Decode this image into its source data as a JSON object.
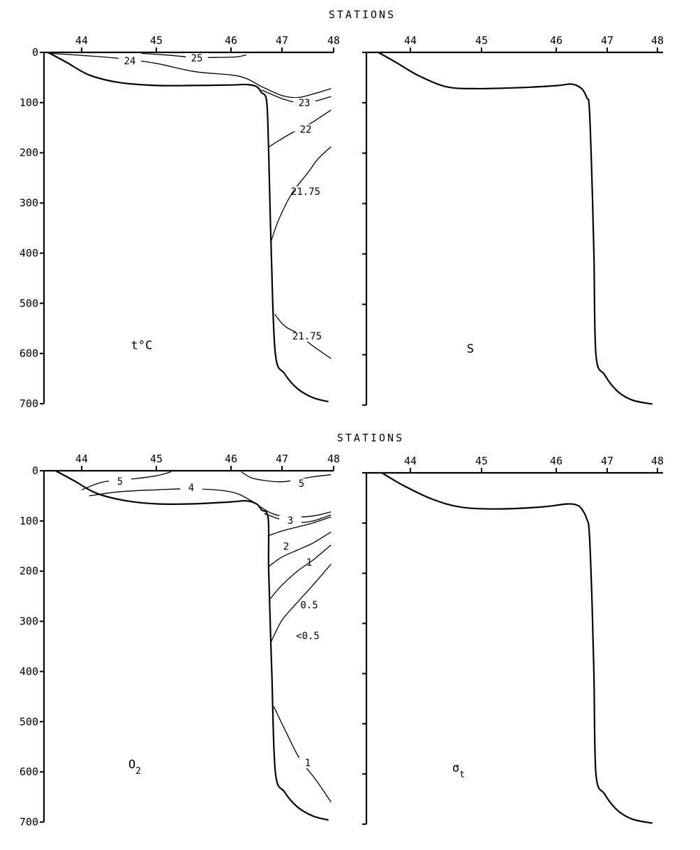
{
  "x_axis_title": "STATIONS",
  "chart_data": [
    {
      "type": "contour",
      "panel_label": "t°C",
      "x_axis_title": "STATIONS",
      "xticks": [
        "44",
        "45",
        "46",
        "47",
        "48"
      ],
      "yticks": [
        "0",
        "100",
        "200",
        "300",
        "400",
        "500",
        "600",
        "700"
      ],
      "xlim": [
        43.5,
        48
      ],
      "ylim": [
        0,
        700
      ],
      "y_axis": "depth (inverted, 0 at top)",
      "bottom_profile": [
        [
          43.55,
          0
        ],
        [
          43.8,
          20
        ],
        [
          44.1,
          45
        ],
        [
          44.5,
          60
        ],
        [
          45,
          66
        ],
        [
          45.5,
          66
        ],
        [
          46,
          65
        ],
        [
          46.3,
          64
        ],
        [
          46.5,
          68
        ],
        [
          46.6,
          80
        ],
        [
          46.7,
          98
        ],
        [
          46.74,
          200
        ],
        [
          46.79,
          400
        ],
        [
          46.87,
          600
        ],
        [
          47.05,
          640
        ],
        [
          47.3,
          670
        ],
        [
          47.6,
          688
        ],
        [
          47.9,
          696
        ]
      ],
      "contours": [
        {
          "label": "25",
          "points": [
            [
              44.8,
              2
            ],
            [
              45.2,
              6
            ],
            [
              45.5,
              10
            ],
            [
              45.8,
              10
            ],
            [
              46.1,
              9
            ],
            [
              46.3,
              5
            ]
          ]
        },
        {
          "label": "24",
          "points": [
            [
              43.55,
              2
            ],
            [
              44,
              6
            ],
            [
              44.5,
              12
            ],
            [
              45,
              22
            ],
            [
              45.5,
              38
            ],
            [
              46,
              45
            ],
            [
              46.3,
              52
            ],
            [
              46.6,
              68
            ],
            [
              47,
              86
            ],
            [
              47.3,
              90
            ],
            [
              47.6,
              83
            ],
            [
              47.95,
              72
            ]
          ]
        },
        {
          "label": "23",
          "points": [
            [
              46.6,
              75
            ],
            [
              47,
              92
            ],
            [
              47.3,
              100
            ],
            [
              47.6,
              98
            ],
            [
              47.95,
              88
            ]
          ]
        },
        {
          "label": "22",
          "points": [
            [
              46.75,
              188
            ],
            [
              46.95,
              175
            ],
            [
              47.2,
              160
            ],
            [
              47.5,
              145
            ],
            [
              47.95,
              115
            ]
          ]
        },
        {
          "label": "21.75",
          "points": [
            [
              46.79,
              375
            ],
            [
              46.95,
              330
            ],
            [
              47.2,
              280
            ],
            [
              47.5,
              240
            ],
            [
              47.7,
              212
            ],
            [
              47.95,
              188
            ]
          ]
        },
        {
          "label": "21.75",
          "points": [
            [
              46.86,
              522
            ],
            [
              47.05,
              545
            ],
            [
              47.3,
              560
            ],
            [
              47.6,
              585
            ],
            [
              47.95,
              610
            ]
          ]
        }
      ]
    },
    {
      "type": "contour",
      "panel_label": "S",
      "xticks": [
        "44",
        "45",
        "46",
        "47",
        "48"
      ],
      "yticks": [
        "",
        "",
        "",
        "",
        "",
        "",
        "",
        ""
      ],
      "xlim": [
        43.5,
        48
      ],
      "ylim": [
        0,
        700
      ],
      "bottom_profile": [
        [
          43.55,
          0
        ],
        [
          43.8,
          20
        ],
        [
          44.1,
          45
        ],
        [
          44.5,
          68
        ],
        [
          44.9,
          72
        ],
        [
          45.5,
          70
        ],
        [
          46,
          66
        ],
        [
          46.3,
          63
        ],
        [
          46.5,
          72
        ],
        [
          46.6,
          90
        ],
        [
          46.65,
          110
        ],
        [
          46.7,
          250
        ],
        [
          46.74,
          400
        ],
        [
          46.78,
          600
        ],
        [
          46.95,
          640
        ],
        [
          47.2,
          672
        ],
        [
          47.5,
          690
        ],
        [
          47.9,
          698
        ]
      ],
      "contours": []
    },
    {
      "type": "contour",
      "panel_label": "O2",
      "panel_label_main": "O",
      "panel_label_sub": "2",
      "x_axis_title": "STATIONS",
      "xticks": [
        "44",
        "45",
        "46",
        "47",
        "48"
      ],
      "yticks": [
        "0",
        "100",
        "200",
        "300",
        "400",
        "500",
        "600",
        "700"
      ],
      "xlim": [
        43.5,
        48
      ],
      "ylim": [
        0,
        700
      ],
      "bottom_profile": [
        [
          43.65,
          0
        ],
        [
          43.9,
          20
        ],
        [
          44.2,
          45
        ],
        [
          44.6,
          60
        ],
        [
          45,
          66
        ],
        [
          45.5,
          66
        ],
        [
          46,
          62
        ],
        [
          46.3,
          60
        ],
        [
          46.5,
          66
        ],
        [
          46.6,
          78
        ],
        [
          46.73,
          95
        ],
        [
          46.74,
          200
        ],
        [
          46.8,
          400
        ],
        [
          46.87,
          600
        ],
        [
          47.05,
          640
        ],
        [
          47.3,
          670
        ],
        [
          47.6,
          688
        ],
        [
          47.9,
          696
        ]
      ],
      "contours": [
        {
          "label": "5",
          "points": [
            [
              44,
              38
            ],
            [
              44.3,
              22
            ],
            [
              44.7,
              16
            ],
            [
              45,
              10
            ],
            [
              45.2,
              2
            ]
          ]
        },
        {
          "label": "4",
          "points": [
            [
              44.1,
              50
            ],
            [
              44.5,
              42
            ],
            [
              45,
              38
            ],
            [
              45.5,
              36
            ],
            [
              46,
              42
            ],
            [
              46.4,
              60
            ],
            [
              46.8,
              85
            ],
            [
              47.2,
              92
            ],
            [
              47.6,
              90
            ],
            [
              47.95,
              82
            ]
          ]
        },
        {
          "label": "5",
          "points": [
            [
              46.2,
              2
            ],
            [
              46.4,
              14
            ],
            [
              46.7,
              20
            ],
            [
              47,
              22
            ],
            [
              47.3,
              18
            ],
            [
              47.6,
              12
            ],
            [
              47.95,
              8
            ]
          ]
        },
        {
          "label": "3",
          "points": [
            [
              46.65,
              85
            ],
            [
              47,
              98
            ],
            [
              47.3,
              103
            ],
            [
              47.6,
              100
            ],
            [
              47.95,
              88
            ]
          ]
        },
        {
          "label": "2",
          "points": [
            [
              46.72,
              130
            ],
            [
              47,
              120
            ],
            [
              47.3,
              112
            ],
            [
              47.6,
              104
            ],
            [
              47.95,
              92
            ]
          ]
        },
        {
          "label": "1",
          "points": [
            [
              46.75,
              190
            ],
            [
              47,
              172
            ],
            [
              47.3,
              158
            ],
            [
              47.6,
              144
            ],
            [
              47.95,
              122
            ]
          ]
        },
        {
          "label": "0.5",
          "points": [
            [
              46.77,
              255
            ],
            [
              47,
              228
            ],
            [
              47.3,
              200
            ],
            [
              47.6,
              178
            ],
            [
              47.95,
              148
            ]
          ]
        },
        {
          "label": "<0.5",
          "points": [
            [
              46.79,
              340
            ],
            [
              47,
              298
            ],
            [
              47.3,
              262
            ],
            [
              47.6,
              228
            ],
            [
              47.95,
              186
            ]
          ]
        },
        {
          "label": "1",
          "points": [
            [
              46.84,
              470
            ],
            [
              47.1,
              525
            ],
            [
              47.35,
              575
            ],
            [
              47.65,
              615
            ],
            [
              47.95,
              660
            ]
          ]
        }
      ]
    },
    {
      "type": "contour",
      "panel_label": "σt",
      "panel_label_main": "σ",
      "panel_label_sub": "t",
      "xticks": [
        "44",
        "45",
        "46",
        "47",
        "48"
      ],
      "yticks": [
        "",
        "",
        "",
        "",
        "",
        "",
        "",
        ""
      ],
      "xlim": [
        43.5,
        48
      ],
      "ylim": [
        0,
        700
      ],
      "bottom_profile": [
        [
          43.6,
          0
        ],
        [
          43.9,
          25
        ],
        [
          44.3,
          52
        ],
        [
          44.7,
          68
        ],
        [
          45.2,
          72
        ],
        [
          45.8,
          68
        ],
        [
          46.2,
          62
        ],
        [
          46.4,
          64
        ],
        [
          46.5,
          72
        ],
        [
          46.6,
          92
        ],
        [
          46.65,
          120
        ],
        [
          46.7,
          250
        ],
        [
          46.74,
          400
        ],
        [
          46.78,
          600
        ],
        [
          46.95,
          640
        ],
        [
          47.2,
          672
        ],
        [
          47.5,
          690
        ],
        [
          47.9,
          698
        ]
      ],
      "contours": []
    }
  ]
}
